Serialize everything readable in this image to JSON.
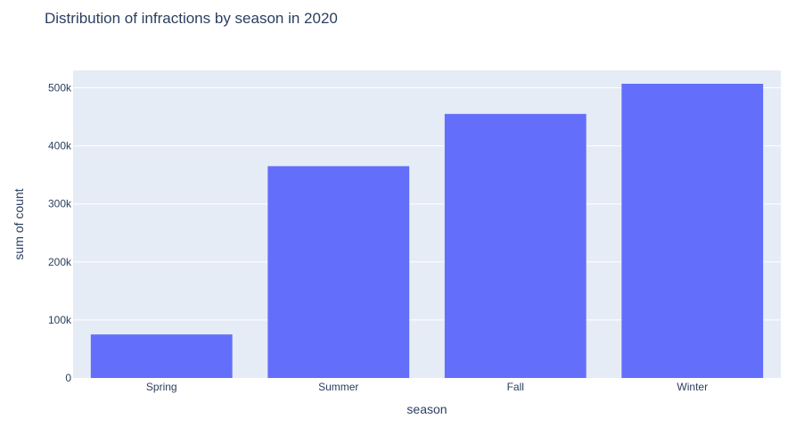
{
  "chart_data": {
    "type": "bar",
    "title": "Distribution of infractions by season in 2020",
    "xlabel": "season",
    "ylabel": "sum of count",
    "categories": [
      "Spring",
      "Summer",
      "Fall",
      "Winter"
    ],
    "values": [
      75000,
      365000,
      455000,
      507000
    ],
    "ylim": [
      0,
      530000
    ],
    "yticks": [
      0,
      100000,
      200000,
      300000,
      400000,
      500000
    ],
    "ytick_labels": [
      "0",
      "100k",
      "200k",
      "300k",
      "400k",
      "500k"
    ],
    "grid": true,
    "legend": "none"
  },
  "colors": {
    "bar": "#636efa",
    "plot_background": "#e5ecf6",
    "grid": "#ffffff",
    "text": "#2a3f5f",
    "tick_text": "#2a3f5f"
  }
}
